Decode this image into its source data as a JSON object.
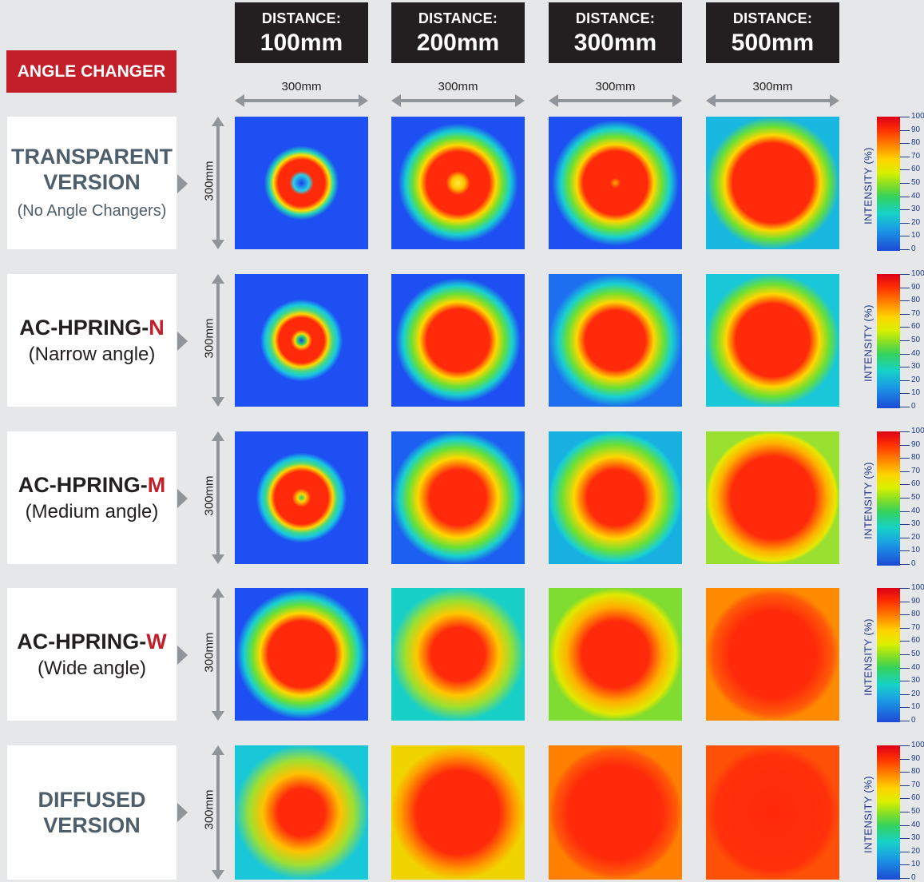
{
  "header": {
    "angle_changer": "ANGLE CHANGER",
    "distances": [
      {
        "label": "DISTANCE:",
        "value": "100mm"
      },
      {
        "label": "DISTANCE:",
        "value": "200mm"
      },
      {
        "label": "DISTANCE:",
        "value": "300mm"
      },
      {
        "label": "DISTANCE:",
        "value": "500mm"
      }
    ],
    "width_labels": [
      "300mm",
      "300mm",
      "300mm",
      "300mm"
    ],
    "height_label": "300mm"
  },
  "rows": [
    {
      "title_lines": [
        "TRANSPARENT",
        "VERSION"
      ],
      "highlight": "",
      "subtitle": "(No Angle Changers)"
    },
    {
      "title_lines": [
        "AC-HPRING-"
      ],
      "highlight": "N",
      "subtitle": "(Narrow angle)"
    },
    {
      "title_lines": [
        "AC-HPRING-"
      ],
      "highlight": "M",
      "subtitle": "(Medium angle)"
    },
    {
      "title_lines": [
        "AC-HPRING-"
      ],
      "highlight": "W",
      "subtitle": "(Wide angle)"
    },
    {
      "title_lines": [
        "DIFFUSED",
        "VERSION"
      ],
      "highlight": "",
      "subtitle": ""
    }
  ],
  "legend": {
    "label": "INTENSITY (%)",
    "ticks": [
      "100",
      "90",
      "80",
      "70",
      "60",
      "50",
      "40",
      "30",
      "20",
      "10",
      "0"
    ]
  },
  "colors": {
    "header_bg": "#231f20",
    "accent_red": "#c21f2a",
    "label_gray": "#4e5e6b",
    "field_blue": "#1d4ed8"
  }
}
